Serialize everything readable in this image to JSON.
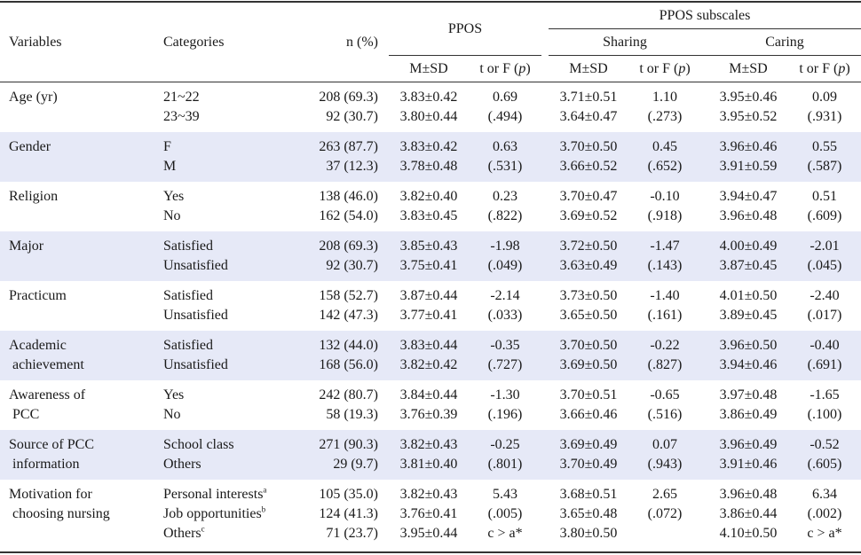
{
  "headers": {
    "variables": "Variables",
    "categories": "Categories",
    "n_pct": "n (%)",
    "ppos": "PPOS",
    "ppos_subscales": "PPOS subscales",
    "sharing": "Sharing",
    "caring": "Caring",
    "msd": "M±SD",
    "t_or_f_prefix": "t or F (",
    "t_or_f_p": "p",
    "t_or_f_suffix": ")"
  },
  "rows": [
    {
      "variable": [
        "Age (yr)"
      ],
      "categories": [
        "21~22",
        "23~39"
      ],
      "n": [
        "208 (69.3)",
        "92 (30.7)"
      ],
      "ppos_msd": [
        "3.83±0.42",
        "3.80±0.44"
      ],
      "ppos_t": [
        "0.69",
        "(.494)"
      ],
      "sharing_msd": [
        "3.71±0.51",
        "3.64±0.47"
      ],
      "sharing_t": [
        "1.10",
        "(.273)"
      ],
      "caring_msd": [
        "3.95±0.46",
        "3.95±0.52"
      ],
      "caring_t": [
        "0.09",
        "(.931)"
      ]
    },
    {
      "variable": [
        "Gender"
      ],
      "categories": [
        "F",
        "M"
      ],
      "n": [
        "263 (87.7)",
        "37 (12.3)"
      ],
      "ppos_msd": [
        "3.83±0.42",
        "3.78±0.48"
      ],
      "ppos_t": [
        "0.63",
        "(.531)"
      ],
      "sharing_msd": [
        "3.70±0.50",
        "3.66±0.52"
      ],
      "sharing_t": [
        "0.45",
        "(.652)"
      ],
      "caring_msd": [
        "3.96±0.46",
        "3.91±0.59"
      ],
      "caring_t": [
        "0.55",
        "(.587)"
      ]
    },
    {
      "variable": [
        "Religion"
      ],
      "categories": [
        "Yes",
        "No"
      ],
      "n": [
        "138 (46.0)",
        "162 (54.0)"
      ],
      "ppos_msd": [
        "3.82±0.40",
        "3.83±0.45"
      ],
      "ppos_t": [
        "0.23",
        "(.822)"
      ],
      "sharing_msd": [
        "3.70±0.47",
        "3.69±0.52"
      ],
      "sharing_t": [
        "-0.10",
        "(.918)"
      ],
      "caring_msd": [
        "3.94±0.47",
        "3.96±0.48"
      ],
      "caring_t": [
        "0.51",
        "(.609)"
      ]
    },
    {
      "variable": [
        "Major"
      ],
      "categories": [
        "Satisfied",
        "Unsatisfied"
      ],
      "n": [
        "208 (69.3)",
        "92 (30.7)"
      ],
      "ppos_msd": [
        "3.85±0.43",
        "3.75±0.41"
      ],
      "ppos_t": [
        "-1.98",
        "(.049)"
      ],
      "sharing_msd": [
        "3.72±0.50",
        "3.63±0.49"
      ],
      "sharing_t": [
        "-1.47",
        "(.143)"
      ],
      "caring_msd": [
        "4.00±0.49",
        "3.87±0.45"
      ],
      "caring_t": [
        "-2.01",
        "(.045)"
      ]
    },
    {
      "variable": [
        "Practicum"
      ],
      "categories": [
        "Satisfied",
        "Unsatisfied"
      ],
      "n": [
        "158 (52.7)",
        "142 (47.3)"
      ],
      "ppos_msd": [
        "3.87±0.44",
        "3.77±0.41"
      ],
      "ppos_t": [
        "-2.14",
        "(.033)"
      ],
      "sharing_msd": [
        "3.73±0.50",
        "3.65±0.50"
      ],
      "sharing_t": [
        "-1.40",
        "(.161)"
      ],
      "caring_msd": [
        "4.01±0.50",
        "3.89±0.45"
      ],
      "caring_t": [
        "-2.40",
        "(.017)"
      ]
    },
    {
      "variable": [
        "Academic",
        " achievement"
      ],
      "categories": [
        "Satisfied",
        "Unsatisfied"
      ],
      "n": [
        "132 (44.0)",
        "168 (56.0)"
      ],
      "ppos_msd": [
        "3.83±0.44",
        "3.82±0.42"
      ],
      "ppos_t": [
        "-0.35",
        "(.727)"
      ],
      "sharing_msd": [
        "3.70±0.50",
        "3.69±0.50"
      ],
      "sharing_t": [
        "-0.22",
        "(.827)"
      ],
      "caring_msd": [
        "3.96±0.50",
        "3.94±0.46"
      ],
      "caring_t": [
        "-0.40",
        "(.691)"
      ]
    },
    {
      "variable": [
        "Awareness of",
        " PCC"
      ],
      "categories": [
        "Yes",
        "No"
      ],
      "n": [
        "242 (80.7)",
        "58 (19.3)"
      ],
      "ppos_msd": [
        "3.84±0.44",
        "3.76±0.39"
      ],
      "ppos_t": [
        "-1.30",
        "(.196)"
      ],
      "sharing_msd": [
        "3.70±0.51",
        "3.66±0.46"
      ],
      "sharing_t": [
        "-0.65",
        "(.516)"
      ],
      "caring_msd": [
        "3.97±0.48",
        "3.86±0.49"
      ],
      "caring_t": [
        "-1.65",
        "(.100)"
      ]
    },
    {
      "variable": [
        "Source of PCC",
        " information"
      ],
      "categories": [
        "School class",
        "Others"
      ],
      "n": [
        "271 (90.3)",
        "29 (9.7)"
      ],
      "ppos_msd": [
        "3.82±0.43",
        "3.81±0.40"
      ],
      "ppos_t": [
        "-0.25",
        "(.801)"
      ],
      "sharing_msd": [
        "3.69±0.49",
        "3.70±0.49"
      ],
      "sharing_t": [
        "0.07",
        "(.943)"
      ],
      "caring_msd": [
        "3.96±0.49",
        "3.91±0.46"
      ],
      "caring_t": [
        "-0.52",
        "(.605)"
      ]
    },
    {
      "variable": [
        "Motivation for",
        " choosing nursing"
      ],
      "categories": [
        "Personal interests",
        "Job opportunities",
        "Others"
      ],
      "category_sups": [
        "a",
        "b",
        "c"
      ],
      "n": [
        "105 (35.0)",
        "124 (41.3)",
        "71 (23.7)"
      ],
      "ppos_msd": [
        "3.82±0.43",
        "3.76±0.41",
        "3.95±0.44"
      ],
      "ppos_t": [
        "5.43",
        "(.005)",
        "c > a*"
      ],
      "sharing_msd": [
        "3.68±0.51",
        "3.65±0.48",
        "3.80±0.50"
      ],
      "sharing_t": [
        "2.65",
        "(.072)",
        ""
      ],
      "caring_msd": [
        "3.96±0.48",
        "3.86±0.44",
        "4.10±0.50"
      ],
      "caring_t": [
        "6.34",
        "(.002)",
        "c > a*"
      ]
    }
  ]
}
